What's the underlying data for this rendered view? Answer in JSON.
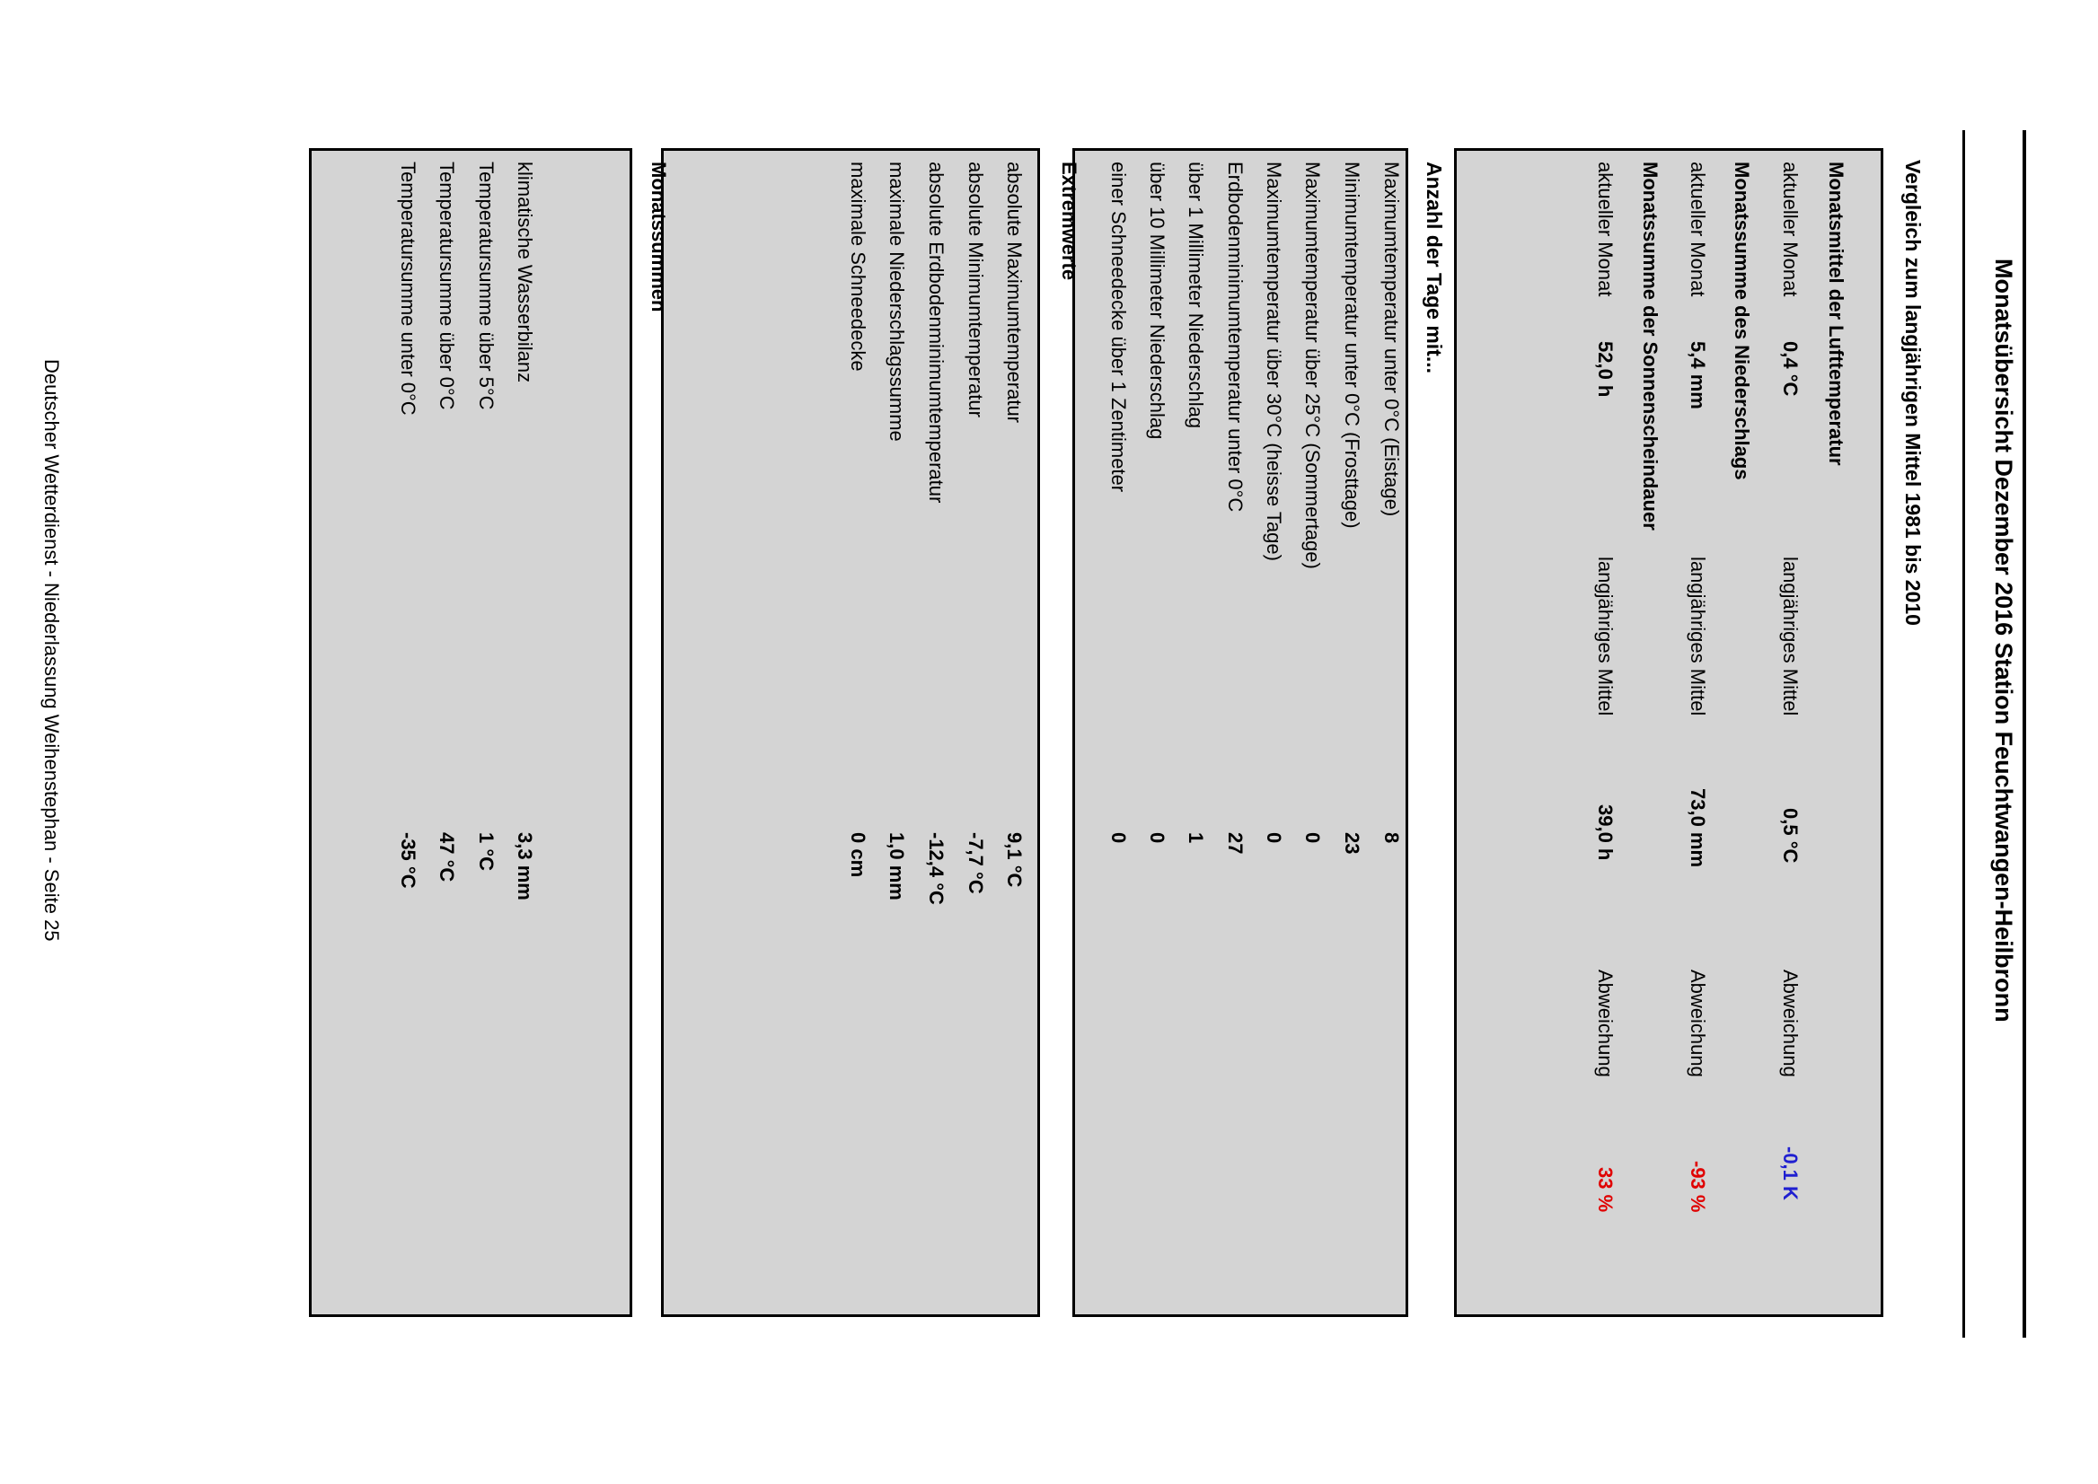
{
  "title": "Monatsübersicht Dezember 2016 Station Feuchtwangen-Heilbronn",
  "comparison": {
    "heading": "Vergleich zum langjährigen Mittel 1981 bis 2010",
    "current_label": "aktueller Monat",
    "mean_label": "langjähriges Mittel",
    "deviation_label": "Abweichung",
    "rows": [
      {
        "heading": "Monatsmittel der Lufttemperatur",
        "current": "0,4 °C",
        "mean": "0,5 °C",
        "deviation": "-0,1 K",
        "deviation_color": "#1f1fd0"
      },
      {
        "heading": "Monatssumme des Niederschlags",
        "current": "5,4 mm",
        "mean": "73,0 mm",
        "deviation": "-93 %",
        "deviation_color": "#e00000"
      },
      {
        "heading": "Monatssumme der Sonnenscheindauer",
        "current": "52,0 h",
        "mean": "39,0 h",
        "deviation": "33 %",
        "deviation_color": "#e00000"
      }
    ]
  },
  "days": {
    "heading": "Anzahl der Tage mit...",
    "rows": [
      {
        "label": "Maximumtemperatur unter 0°C (Eistage)",
        "value": "8"
      },
      {
        "label": "Minimumtemperatur unter 0°C (Frosttage)",
        "value": "23"
      },
      {
        "label": "Maximumtemperatur über 25°C (Sommertage)",
        "value": "0"
      },
      {
        "label": "Maximumtemperatur über 30°C (heisse Tage)",
        "value": "0"
      },
      {
        "label": "Erdbodenminimumtemperatur unter 0°C",
        "value": "27"
      },
      {
        "label": "über 1 Millimeter Niederschlag",
        "value": "1"
      },
      {
        "label": "über 10 Millimeter Niederschlag",
        "value": "0"
      },
      {
        "label": "einer Schneedecke über 1 Zentimeter",
        "value": "0"
      }
    ]
  },
  "extremes": {
    "heading": "Extremwerte",
    "rows": [
      {
        "label": "absolute Maximumtemperatur",
        "value": "9,1 °C"
      },
      {
        "label": "absolute Minimumtemperatur",
        "value": "-7,7 °C"
      },
      {
        "label": "absolute Erdbodenminimumtemperatur",
        "value": "-12,4 °C"
      },
      {
        "label": "maximale Niederschlagssumme",
        "value": "1,0 mm"
      },
      {
        "label": "maximale Schneedecke",
        "value": "0 cm"
      }
    ]
  },
  "sums": {
    "heading": "Monatssummen",
    "rows": [
      {
        "label": "klimatische Wasserbilanz",
        "value": "3,3 mm"
      },
      {
        "label": "Temperatursumme über 5°C",
        "value": "1 °C"
      },
      {
        "label": "Temperatursumme über 0°C",
        "value": "47 °C"
      },
      {
        "label": "Temperatursumme unter 0°C",
        "value": "-35 °C"
      }
    ]
  },
  "footer": "Deutscher Wetterdienst - Niederlassung Weihenstephan - Seite 25"
}
